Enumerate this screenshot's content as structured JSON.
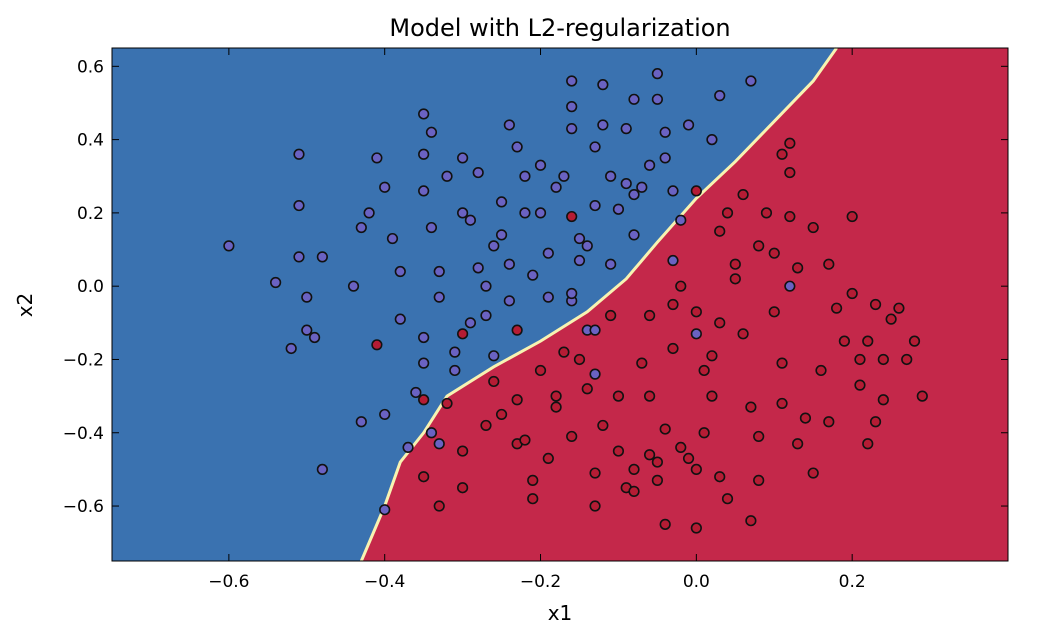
{
  "chart_data": {
    "type": "scatter",
    "title": "Model with L2-regularization",
    "xlabel": "x1",
    "ylabel": "x2",
    "xlim": [
      -0.75,
      0.4
    ],
    "ylim": [
      -0.75,
      0.65
    ],
    "x_ticks": [
      -0.6,
      -0.4,
      -0.2,
      0.0,
      0.2
    ],
    "x_tick_labels": [
      "−0.6",
      "−0.4",
      "−0.2",
      "0.0",
      "0.2"
    ],
    "y_ticks": [
      0.6,
      0.4,
      0.2,
      0.0,
      -0.2,
      -0.4,
      -0.6
    ],
    "y_tick_labels": [
      "0.6",
      "0.4",
      "0.2",
      "0.0",
      "−0.2",
      "−0.4",
      "−0.6"
    ],
    "grid": false,
    "colors": {
      "region_blue": "#3a72b0",
      "region_red": "#c4284a",
      "boundary": "#f7f3b2",
      "point_blue": "#6a62c2",
      "point_red": "#b51c34",
      "point_edge": "#111111"
    },
    "decision_boundary": [
      [
        -0.43,
        -0.75
      ],
      [
        -0.4,
        -0.6
      ],
      [
        -0.38,
        -0.48
      ],
      [
        -0.35,
        -0.4
      ],
      [
        -0.32,
        -0.3
      ],
      [
        -0.26,
        -0.22
      ],
      [
        -0.2,
        -0.15
      ],
      [
        -0.14,
        -0.07
      ],
      [
        -0.09,
        0.02
      ],
      [
        -0.05,
        0.12
      ],
      [
        0.0,
        0.24
      ],
      [
        0.05,
        0.34
      ],
      [
        0.1,
        0.45
      ],
      [
        0.15,
        0.56
      ],
      [
        0.18,
        0.65
      ]
    ],
    "series": [
      {
        "color": "blue",
        "points": [
          [
            -0.6,
            0.11
          ],
          [
            -0.54,
            0.01
          ],
          [
            -0.52,
            -0.17
          ],
          [
            -0.51,
            0.36
          ],
          [
            -0.51,
            0.22
          ],
          [
            -0.51,
            0.08
          ],
          [
            -0.5,
            -0.12
          ],
          [
            -0.49,
            -0.14
          ],
          [
            -0.5,
            -0.03
          ],
          [
            -0.48,
            0.08
          ],
          [
            -0.48,
            -0.5
          ],
          [
            -0.44,
            0.0
          ],
          [
            -0.43,
            0.16
          ],
          [
            -0.42,
            0.2
          ],
          [
            -0.41,
            0.35
          ],
          [
            -0.43,
            -0.37
          ],
          [
            -0.4,
            0.27
          ],
          [
            -0.39,
            0.13
          ],
          [
            -0.38,
            0.04
          ],
          [
            -0.38,
            -0.09
          ],
          [
            -0.37,
            -0.44
          ],
          [
            -0.4,
            -0.35
          ],
          [
            -0.36,
            -0.29
          ],
          [
            -0.35,
            -0.14
          ],
          [
            -0.35,
            -0.21
          ],
          [
            -0.34,
            -0.4
          ],
          [
            -0.33,
            -0.43
          ],
          [
            -0.35,
            0.47
          ],
          [
            -0.34,
            0.42
          ],
          [
            -0.35,
            0.36
          ],
          [
            -0.35,
            0.26
          ],
          [
            -0.34,
            0.16
          ],
          [
            -0.33,
            0.04
          ],
          [
            -0.33,
            -0.03
          ],
          [
            -0.32,
            0.3
          ],
          [
            -0.31,
            -0.18
          ],
          [
            -0.31,
            -0.23
          ],
          [
            -0.3,
            0.35
          ],
          [
            -0.3,
            0.2
          ],
          [
            -0.29,
            0.18
          ],
          [
            -0.29,
            -0.1
          ],
          [
            -0.28,
            0.31
          ],
          [
            -0.28,
            0.05
          ],
          [
            -0.27,
            -0.08
          ],
          [
            -0.27,
            0.0
          ],
          [
            -0.26,
            -0.19
          ],
          [
            -0.26,
            0.11
          ],
          [
            -0.25,
            0.23
          ],
          [
            -0.25,
            0.14
          ],
          [
            -0.24,
            0.06
          ],
          [
            -0.24,
            -0.04
          ],
          [
            -0.24,
            0.44
          ],
          [
            -0.23,
            0.38
          ],
          [
            -0.22,
            0.3
          ],
          [
            -0.22,
            0.2
          ],
          [
            -0.21,
            0.03
          ],
          [
            -0.2,
            0.33
          ],
          [
            -0.2,
            0.2
          ],
          [
            -0.19,
            -0.03
          ],
          [
            -0.19,
            0.09
          ],
          [
            -0.18,
            0.27
          ],
          [
            -0.17,
            0.3
          ],
          [
            -0.16,
            0.49
          ],
          [
            -0.16,
            0.43
          ],
          [
            -0.16,
            0.56
          ],
          [
            -0.16,
            -0.04
          ],
          [
            -0.15,
            0.07
          ],
          [
            -0.15,
            0.13
          ],
          [
            -0.14,
            0.11
          ],
          [
            -0.14,
            -0.12
          ],
          [
            -0.13,
            0.38
          ],
          [
            -0.13,
            0.22
          ],
          [
            -0.12,
            0.55
          ],
          [
            -0.12,
            0.44
          ],
          [
            -0.11,
            0.3
          ],
          [
            -0.11,
            0.06
          ],
          [
            -0.1,
            0.21
          ],
          [
            -0.09,
            0.28
          ],
          [
            -0.09,
            0.43
          ],
          [
            -0.08,
            0.51
          ],
          [
            -0.08,
            0.25
          ],
          [
            -0.08,
            0.14
          ],
          [
            -0.07,
            0.27
          ],
          [
            -0.06,
            0.33
          ],
          [
            -0.05,
            0.58
          ],
          [
            -0.05,
            0.51
          ],
          [
            -0.04,
            0.42
          ],
          [
            -0.04,
            0.35
          ],
          [
            -0.03,
            0.26
          ],
          [
            -0.03,
            0.07
          ],
          [
            -0.02,
            0.18
          ],
          [
            -0.01,
            0.44
          ],
          [
            0.02,
            0.4
          ],
          [
            0.03,
            0.52
          ],
          [
            0.07,
            0.56
          ],
          [
            -0.13,
            -0.24
          ],
          [
            0.0,
            -0.13
          ],
          [
            0.12,
            0.0
          ],
          [
            -0.4,
            -0.61
          ],
          [
            -0.13,
            -0.12
          ],
          [
            -0.16,
            -0.02
          ]
        ]
      },
      {
        "color": "red",
        "points": [
          [
            -0.41,
            -0.16
          ],
          [
            -0.35,
            -0.31
          ],
          [
            -0.3,
            -0.13
          ],
          [
            -0.23,
            -0.12
          ],
          [
            -0.16,
            0.19
          ],
          [
            -0.33,
            -0.6
          ],
          [
            -0.35,
            -0.52
          ],
          [
            -0.32,
            -0.32
          ],
          [
            -0.3,
            -0.45
          ],
          [
            -0.3,
            -0.55
          ],
          [
            -0.27,
            -0.38
          ],
          [
            -0.26,
            -0.26
          ],
          [
            -0.25,
            -0.35
          ],
          [
            -0.23,
            -0.31
          ],
          [
            -0.23,
            -0.43
          ],
          [
            -0.22,
            -0.42
          ],
          [
            -0.21,
            -0.53
          ],
          [
            -0.21,
            -0.58
          ],
          [
            -0.2,
            -0.23
          ],
          [
            -0.19,
            -0.47
          ],
          [
            -0.18,
            -0.33
          ],
          [
            -0.18,
            -0.3
          ],
          [
            -0.17,
            -0.18
          ],
          [
            -0.16,
            -0.41
          ],
          [
            -0.15,
            -0.2
          ],
          [
            -0.14,
            -0.28
          ],
          [
            -0.13,
            -0.51
          ],
          [
            -0.13,
            -0.6
          ],
          [
            -0.12,
            -0.38
          ],
          [
            -0.11,
            -0.08
          ],
          [
            -0.1,
            -0.3
          ],
          [
            -0.1,
            -0.45
          ],
          [
            -0.09,
            -0.55
          ],
          [
            -0.08,
            -0.56
          ],
          [
            -0.08,
            -0.5
          ],
          [
            -0.07,
            -0.21
          ],
          [
            -0.06,
            -0.08
          ],
          [
            -0.06,
            -0.3
          ],
          [
            -0.06,
            -0.46
          ],
          [
            -0.05,
            -0.53
          ],
          [
            -0.05,
            -0.48
          ],
          [
            -0.04,
            -0.65
          ],
          [
            -0.04,
            -0.39
          ],
          [
            -0.03,
            -0.17
          ],
          [
            -0.03,
            -0.05
          ],
          [
            -0.02,
            0.0
          ],
          [
            -0.02,
            -0.44
          ],
          [
            -0.01,
            -0.47
          ],
          [
            0.0,
            -0.5
          ],
          [
            0.01,
            -0.4
          ],
          [
            0.01,
            -0.23
          ],
          [
            0.02,
            -0.3
          ],
          [
            0.02,
            -0.19
          ],
          [
            0.03,
            -0.52
          ],
          [
            0.04,
            -0.58
          ],
          [
            0.05,
            0.02
          ],
          [
            0.05,
            0.06
          ],
          [
            0.06,
            -0.13
          ],
          [
            0.06,
            0.25
          ],
          [
            0.07,
            -0.33
          ],
          [
            0.08,
            -0.41
          ],
          [
            0.08,
            -0.53
          ],
          [
            0.09,
            0.2
          ],
          [
            0.1,
            -0.07
          ],
          [
            0.1,
            0.09
          ],
          [
            0.11,
            -0.21
          ],
          [
            0.11,
            -0.32
          ],
          [
            0.11,
            0.36
          ],
          [
            0.12,
            0.31
          ],
          [
            0.12,
            0.19
          ],
          [
            0.13,
            0.05
          ],
          [
            0.13,
            -0.43
          ],
          [
            0.14,
            -0.36
          ],
          [
            0.15,
            -0.51
          ],
          [
            0.15,
            0.16
          ],
          [
            0.16,
            -0.23
          ],
          [
            0.17,
            0.06
          ],
          [
            0.17,
            -0.37
          ],
          [
            0.18,
            -0.06
          ],
          [
            0.19,
            -0.15
          ],
          [
            0.2,
            -0.02
          ],
          [
            0.2,
            0.19
          ],
          [
            0.21,
            -0.27
          ],
          [
            0.21,
            -0.2
          ],
          [
            0.22,
            -0.43
          ],
          [
            0.22,
            -0.15
          ],
          [
            0.23,
            -0.37
          ],
          [
            0.23,
            -0.05
          ],
          [
            0.24,
            -0.2
          ],
          [
            0.24,
            -0.31
          ],
          [
            0.25,
            -0.09
          ],
          [
            0.26,
            -0.06
          ],
          [
            0.27,
            -0.2
          ],
          [
            0.28,
            -0.15
          ],
          [
            0.29,
            -0.3
          ],
          [
            0.0,
            -0.66
          ],
          [
            0.07,
            -0.64
          ],
          [
            0.0,
            0.26
          ],
          [
            0.03,
            0.15
          ],
          [
            0.04,
            0.2
          ],
          [
            0.08,
            0.11
          ],
          [
            0.12,
            0.39
          ],
          [
            0.0,
            -0.07
          ],
          [
            0.03,
            -0.1
          ]
        ]
      }
    ]
  }
}
